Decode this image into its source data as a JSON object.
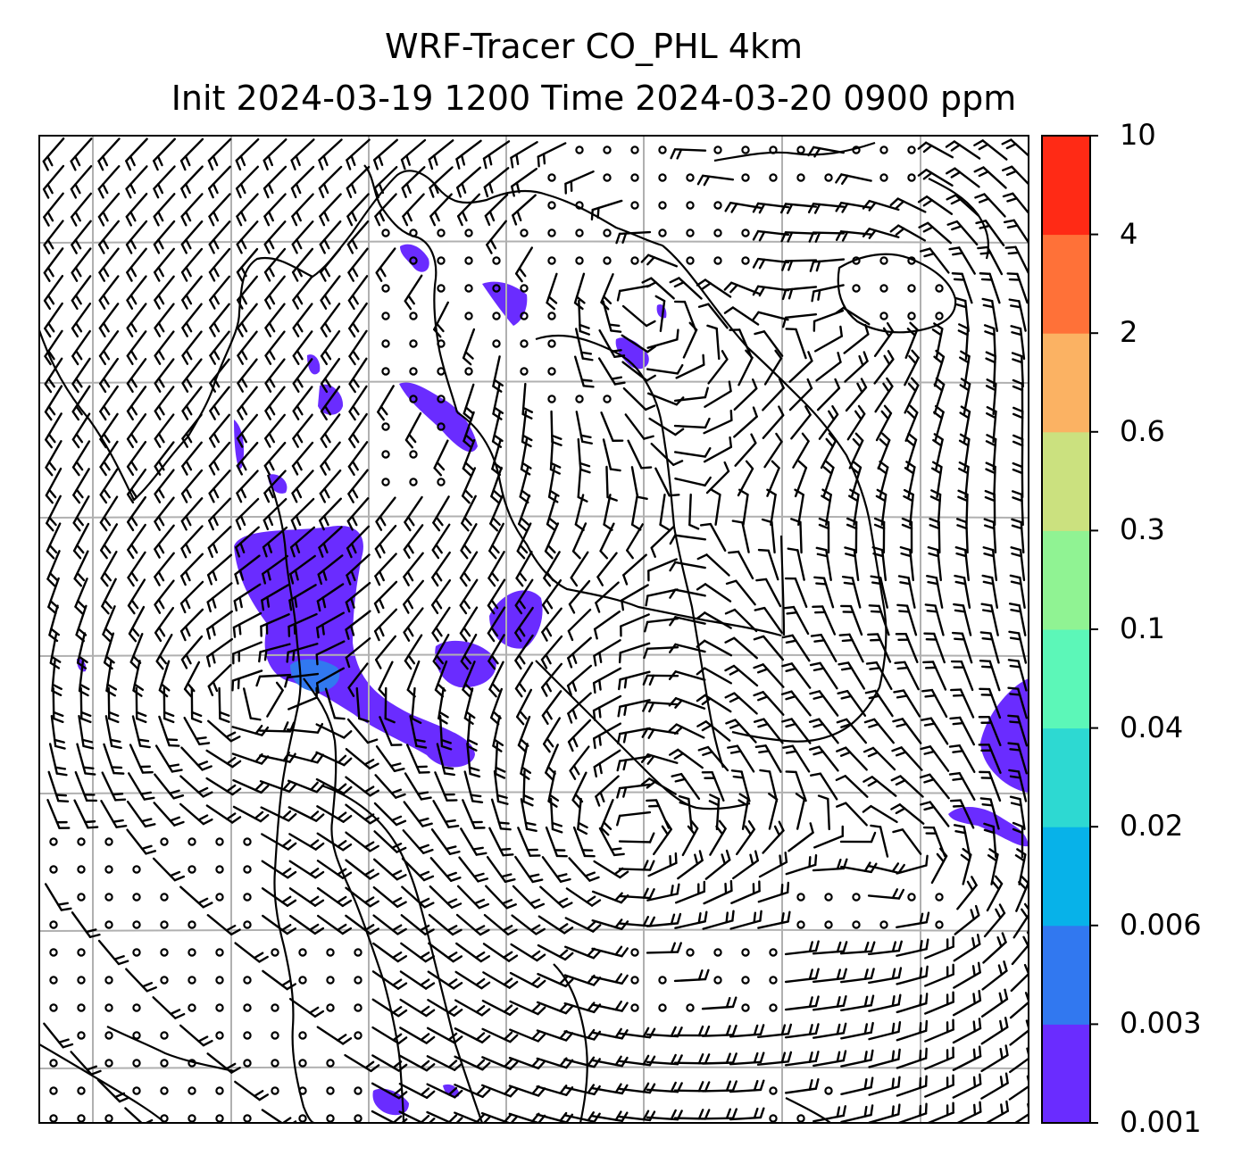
{
  "title": {
    "line1": "WRF-Tracer CO_PHL 4km",
    "line2": "Init 2024-03-19 1200 Time 2024-03-20 0900 ppm"
  },
  "colorbar": {
    "levels": [
      "0.001",
      "0.003",
      "0.006",
      "0.02",
      "0.04",
      "0.1",
      "0.3",
      "0.6",
      "2",
      "4",
      "10"
    ],
    "colors": [
      "#6a2cff",
      "#3178f0",
      "#07b2e9",
      "#2dd9d2",
      "#5cf7b8",
      "#90f393",
      "#cbe17f",
      "#fbb263",
      "#ff7138",
      "#ff2a15"
    ]
  },
  "map": {
    "tracer_color": "#6a2cff",
    "core_color": "#3178f0",
    "gridline_color": "#b0b0b0",
    "coastline_color": "#000000"
  }
}
